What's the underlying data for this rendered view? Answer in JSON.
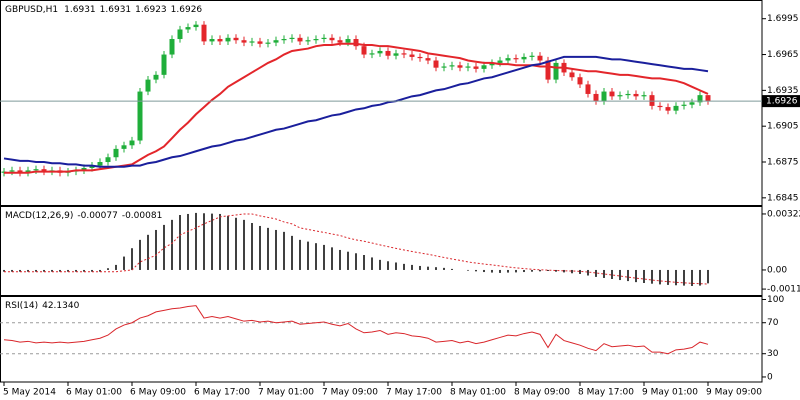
{
  "chart_data": [
    {
      "type": "candlestick",
      "symbol": "GBPUSD,H1",
      "categories": [
        "5 May 2014",
        null,
        null,
        null,
        null,
        null,
        null,
        null,
        "6 May 01:00",
        null,
        null,
        null,
        null,
        null,
        null,
        null,
        "6 May 09:00",
        null,
        null,
        null,
        null,
        null,
        null,
        null,
        "6 May 17:00",
        null,
        null,
        null,
        null,
        null,
        null,
        null,
        "7 May 01:00",
        null,
        null,
        null,
        null,
        null,
        null,
        null,
        "7 May 09:00",
        null,
        null,
        null,
        null,
        null,
        null,
        null,
        "7 May 17:00",
        null,
        null,
        null,
        null,
        null,
        null,
        null,
        "8 May 01:00",
        null,
        null,
        null,
        null,
        null,
        null,
        null,
        "8 May 09:00",
        null,
        null,
        null,
        null,
        null,
        null,
        null,
        "8 May 17:00",
        null,
        null,
        null,
        null,
        null,
        null,
        null,
        "9 May 01:00",
        null,
        null,
        null,
        null,
        null,
        null,
        null,
        "9 May 09:00"
      ],
      "open": [
        1.6866,
        1.6867,
        1.6868,
        1.6866,
        1.6868,
        1.6869,
        1.6867,
        1.6868,
        1.6866,
        1.6867,
        1.6868,
        1.687,
        1.6872,
        1.6875,
        1.6879,
        1.6886,
        1.6889,
        1.6893,
        1.6934,
        1.6944,
        1.6948,
        1.6965,
        1.6978,
        1.6986,
        1.6988,
        1.699,
        1.6976,
        1.6978,
        1.6976,
        1.6979,
        1.6977,
        1.6975,
        1.6976,
        1.6974,
        1.6975,
        1.6977,
        1.6978,
        1.6979,
        1.6976,
        1.6977,
        1.6978,
        1.6979,
        1.6977,
        1.6975,
        1.6978,
        1.6972,
        1.6965,
        1.6966,
        1.6968,
        1.6964,
        1.6966,
        1.6965,
        1.6963,
        1.6962,
        1.696,
        1.6954,
        1.6955,
        1.6956,
        1.6954,
        1.6955,
        1.6953,
        1.6956,
        1.6958,
        1.696,
        1.6962,
        1.6961,
        1.6963,
        1.6964,
        1.696,
        1.6944,
        1.6958,
        1.695,
        1.6946,
        1.694,
        1.6932,
        1.6926,
        1.6934,
        1.693,
        1.6931,
        1.6932,
        1.693,
        1.6931,
        1.6922,
        1.6921,
        1.6918,
        1.6922,
        1.6923,
        1.6925,
        1.6931
      ],
      "high": [
        1.687,
        1.6871,
        1.6871,
        1.6871,
        1.6872,
        1.6872,
        1.6871,
        1.6871,
        1.687,
        1.6871,
        1.6873,
        1.6875,
        1.6878,
        1.6882,
        1.6889,
        1.6892,
        1.6896,
        1.6937,
        1.6947,
        1.6951,
        1.6968,
        1.6981,
        1.6989,
        1.6991,
        1.6993,
        1.6993,
        1.6981,
        1.6981,
        1.6982,
        1.6982,
        1.698,
        1.6979,
        1.6979,
        1.6978,
        1.698,
        1.6981,
        1.6982,
        1.6982,
        1.698,
        1.6981,
        1.6982,
        1.6982,
        1.698,
        1.6981,
        1.6981,
        1.6975,
        1.6969,
        1.6971,
        1.6971,
        1.6969,
        1.6969,
        1.6968,
        1.6966,
        1.6965,
        1.6963,
        1.6958,
        1.6959,
        1.6959,
        1.6958,
        1.6958,
        1.6959,
        1.6961,
        1.6963,
        1.6965,
        1.6965,
        1.6966,
        1.6967,
        1.6967,
        1.6963,
        1.6961,
        1.6961,
        1.6953,
        1.6949,
        1.6943,
        1.6935,
        1.6937,
        1.6937,
        1.6934,
        1.6935,
        1.6935,
        1.6934,
        1.6934,
        1.6925,
        1.6924,
        1.6925,
        1.6926,
        1.6928,
        1.6934,
        1.6931
      ],
      "low": [
        1.6863,
        1.6864,
        1.6863,
        1.6863,
        1.6865,
        1.6864,
        1.6864,
        1.6863,
        1.6863,
        1.6864,
        1.6865,
        1.6867,
        1.6869,
        1.6872,
        1.6876,
        1.6883,
        1.6886,
        1.689,
        1.6931,
        1.6941,
        1.6945,
        1.6962,
        1.6975,
        1.6983,
        1.6985,
        1.6973,
        1.6973,
        1.6973,
        1.6973,
        1.6974,
        1.6972,
        1.6972,
        1.6971,
        1.6971,
        1.6972,
        1.6974,
        1.6975,
        1.6973,
        1.6973,
        1.6974,
        1.6975,
        1.6974,
        1.6972,
        1.6972,
        1.6969,
        1.6962,
        1.6962,
        1.6963,
        1.6961,
        1.6961,
        1.6962,
        1.696,
        1.6959,
        1.6957,
        1.6951,
        1.6951,
        1.6952,
        1.6951,
        1.6951,
        1.695,
        1.695,
        1.6953,
        1.6955,
        1.6957,
        1.6958,
        1.6958,
        1.696,
        1.6957,
        1.6941,
        1.6941,
        1.6947,
        1.6943,
        1.6937,
        1.6929,
        1.6923,
        1.6923,
        1.6927,
        1.6927,
        1.6928,
        1.6927,
        1.6927,
        1.6919,
        1.6918,
        1.6915,
        1.6915,
        1.6919,
        1.692,
        1.6922,
        1.6923
      ],
      "close": [
        1.6867,
        1.6868,
        1.6866,
        1.6868,
        1.6869,
        1.6867,
        1.6868,
        1.6866,
        1.6867,
        1.6868,
        1.687,
        1.6872,
        1.6875,
        1.6879,
        1.6886,
        1.6889,
        1.6893,
        1.6934,
        1.6944,
        1.6948,
        1.6965,
        1.6978,
        1.6986,
        1.6988,
        1.699,
        1.6976,
        1.6978,
        1.6976,
        1.6979,
        1.6977,
        1.6975,
        1.6976,
        1.6974,
        1.6975,
        1.6977,
        1.6978,
        1.6979,
        1.6976,
        1.6977,
        1.6978,
        1.6979,
        1.6977,
        1.6975,
        1.6978,
        1.6972,
        1.6965,
        1.6966,
        1.6968,
        1.6964,
        1.6966,
        1.6965,
        1.6963,
        1.6962,
        1.696,
        1.6954,
        1.6955,
        1.6956,
        1.6954,
        1.6955,
        1.6953,
        1.6956,
        1.6958,
        1.696,
        1.6962,
        1.6961,
        1.6963,
        1.6964,
        1.696,
        1.6944,
        1.6958,
        1.695,
        1.6946,
        1.694,
        1.6932,
        1.6926,
        1.6934,
        1.693,
        1.6931,
        1.6932,
        1.693,
        1.6931,
        1.6922,
        1.6921,
        1.6918,
        1.6922,
        1.6923,
        1.6925,
        1.6931,
        1.6926
      ],
      "up_color": "#1fae3a",
      "down_color": "#e3262b",
      "series": [
        {
          "color": "#e3262b",
          "values": [
            1.6866,
            1.6866,
            1.6866,
            1.6866,
            1.6867,
            1.6867,
            1.6867,
            1.6867,
            1.6867,
            1.6868,
            1.6868,
            1.6868,
            1.6869,
            1.687,
            1.6871,
            1.6872,
            1.6873,
            1.6877,
            1.6881,
            1.6884,
            1.6888,
            1.6895,
            1.6902,
            1.6908,
            1.6915,
            1.6921,
            1.6927,
            1.6932,
            1.6938,
            1.6942,
            1.6946,
            1.695,
            1.6954,
            1.6958,
            1.6961,
            1.6965,
            1.6968,
            1.6969,
            1.697,
            1.6972,
            1.6973,
            1.6973,
            1.6974,
            1.6974,
            1.6974,
            1.6973,
            1.6973,
            1.6972,
            1.6972,
            1.6971,
            1.697,
            1.6969,
            1.6968,
            1.6966,
            1.6965,
            1.6964,
            1.6963,
            1.6962,
            1.696,
            1.6959,
            1.6958,
            1.6958,
            1.6957,
            1.6957,
            1.6956,
            1.6956,
            1.6956,
            1.6955,
            1.6955,
            1.6954,
            1.6954,
            1.6953,
            1.6952,
            1.6951,
            1.6951,
            1.695,
            1.6949,
            1.6948,
            1.6948,
            1.6947,
            1.6946,
            1.6945,
            1.6945,
            1.6944,
            1.6943,
            1.6941,
            1.6938,
            1.6935,
            1.6932
          ]
        },
        {
          "color": "#1a1f9c",
          "values": [
            1.6878,
            1.6877,
            1.6876,
            1.6876,
            1.6875,
            1.6875,
            1.6874,
            1.6874,
            1.6873,
            1.6873,
            1.6872,
            1.6872,
            1.6871,
            1.6871,
            1.6871,
            1.6871,
            1.6872,
            1.6872,
            1.6874,
            1.6875,
            1.6877,
            1.6879,
            1.688,
            1.6882,
            1.6884,
            1.6886,
            1.6888,
            1.6889,
            1.6891,
            1.6893,
            1.6894,
            1.6896,
            1.6898,
            1.69,
            1.6902,
            1.6903,
            1.6905,
            1.6907,
            1.6909,
            1.691,
            1.6912,
            1.6914,
            1.6915,
            1.6917,
            1.6919,
            1.692,
            1.6922,
            1.6923,
            1.6925,
            1.6926,
            1.6928,
            1.693,
            1.6931,
            1.6933,
            1.6935,
            1.6936,
            1.6938,
            1.694,
            1.6941,
            1.6943,
            1.6945,
            1.6946,
            1.6948,
            1.695,
            1.6952,
            1.6954,
            1.6956,
            1.6957,
            1.6959,
            1.6961,
            1.6963,
            1.6963,
            1.6963,
            1.6963,
            1.6963,
            1.6962,
            1.6961,
            1.6961,
            1.696,
            1.6959,
            1.6958,
            1.6957,
            1.6956,
            1.6955,
            1.6954,
            1.6953,
            1.6953,
            1.6952,
            1.6951
          ]
        }
      ],
      "price_line_color": "#7f9a9a",
      "ylim": [
        1.6839,
        1.7009
      ],
      "yticks": [
        1.6995,
        1.6965,
        1.6935,
        1.6905,
        1.6875,
        1.6845
      ]
    },
    {
      "type": "macd",
      "title": "MACD(12,26,9)",
      "histogram": {
        "color": "#000000",
        "values": [
          -0.0001,
          -0.0001,
          -0.0001,
          -0.0001,
          -0.0001,
          -0.0001,
          -0.0001,
          -0.0001,
          -0.0001,
          -0.0001,
          -0.0001,
          -0.0001,
          -0.0001,
          0.0001,
          0.00029,
          0.00077,
          0.00125,
          0.00173,
          0.00202,
          0.0023,
          0.00259,
          0.00288,
          0.00316,
          0.00322,
          0.00328,
          0.00326,
          0.00324,
          0.00322,
          0.00311,
          0.003,
          0.00288,
          0.0027,
          0.00253,
          0.00242,
          0.0023,
          0.00219,
          0.00196,
          0.00173,
          0.00163,
          0.00154,
          0.00144,
          0.0013,
          0.00115,
          0.00105,
          0.00096,
          0.00086,
          0.00072,
          0.00058,
          0.0005,
          0.00043,
          0.00035,
          0.00029,
          0.00023,
          0.00019,
          0.00016,
          0.00012,
          6e-05,
          0,
          -4e-05,
          -8e-05,
          -0.00012,
          -0.00015,
          -0.00017,
          -0.00015,
          -0.00014,
          -0.00012,
          -0.0001,
          -8e-05,
          -6e-05,
          -0.0001,
          -0.00014,
          -0.00019,
          -0.00023,
          -0.00032,
          -0.0004,
          -0.00046,
          -0.00052,
          -0.00058,
          -0.00064,
          -0.0007,
          -0.00075,
          -0.00079,
          -0.00083,
          -0.00086,
          -0.00088,
          -0.0009,
          -0.00092,
          -0.0009,
          -0.00077
        ]
      },
      "signal": {
        "color": "#d9262b",
        "values": [
          -0.0001,
          -0.0001,
          -0.0001,
          -0.0001,
          -0.0001,
          -0.0001,
          -0.0001,
          -0.0001,
          -0.0001,
          -0.0001,
          -0.0001,
          -0.0001,
          -0.0001,
          -0.0001,
          -0.0001,
          -5e-05,
          0,
          0.00046,
          0.00065,
          0.00085,
          0.00127,
          0.00153,
          0.00201,
          0.00222,
          0.00242,
          0.00265,
          0.00285,
          0.00305,
          0.00311,
          0.00316,
          0.00322,
          0.00322,
          0.00311,
          0.00302,
          0.00293,
          0.00276,
          0.00265,
          0.00242,
          0.00233,
          0.00224,
          0.00216,
          0.00207,
          0.00198,
          0.00184,
          0.00173,
          0.00165,
          0.00155,
          0.00144,
          0.00134,
          0.00124,
          0.00115,
          0.00106,
          0.00098,
          0.0009,
          0.00081,
          0.00072,
          0.00063,
          0.00055,
          0.00046,
          0.0004,
          0.00034,
          0.00029,
          0.00023,
          0.00017,
          0.00012,
          8e-05,
          4e-05,
          1e-05,
          -1e-05,
          -3e-05,
          -5e-05,
          -6e-05,
          -8e-05,
          -0.00012,
          -0.00017,
          -0.00023,
          -0.00029,
          -0.00035,
          -0.00041,
          -0.00047,
          -0.00052,
          -0.00058,
          -0.00063,
          -0.00067,
          -0.00071,
          -0.00074,
          -0.00077,
          -0.00079,
          -0.00081
        ]
      },
      "ylim": [
        -0.00144,
        0.00362
      ],
      "yticks": [
        0.00322,
        {
          "value": 0,
          "label": "0.00"
        },
        -0.0011
      ]
    },
    {
      "type": "rsi",
      "title": "RSI(14)",
      "color": "#d9262b",
      "values": [
        48,
        47,
        45,
        46,
        44,
        45,
        44,
        45,
        44,
        45,
        46,
        48,
        50,
        54,
        62,
        67,
        70,
        76,
        79,
        84,
        86,
        88,
        89,
        91,
        92,
        76,
        78,
        76,
        78,
        75,
        72,
        73,
        71,
        72,
        70,
        71,
        72,
        68,
        69,
        70,
        71,
        68,
        66,
        69,
        62,
        57,
        58,
        60,
        55,
        57,
        56,
        53,
        52,
        50,
        45,
        46,
        47,
        44,
        46,
        43,
        45,
        48,
        51,
        54,
        53,
        56,
        58,
        55,
        38,
        55,
        47,
        44,
        41,
        37,
        34,
        43,
        39,
        40,
        41,
        39,
        40,
        32,
        32,
        30,
        35,
        36,
        38,
        45,
        42.134
      ],
      "value_label": "42.1340",
      "levels": [
        70,
        30
      ],
      "ylim": [
        -6.5,
        103.2
      ],
      "yticks": [
        100,
        70,
        30,
        0
      ]
    }
  ]
}
